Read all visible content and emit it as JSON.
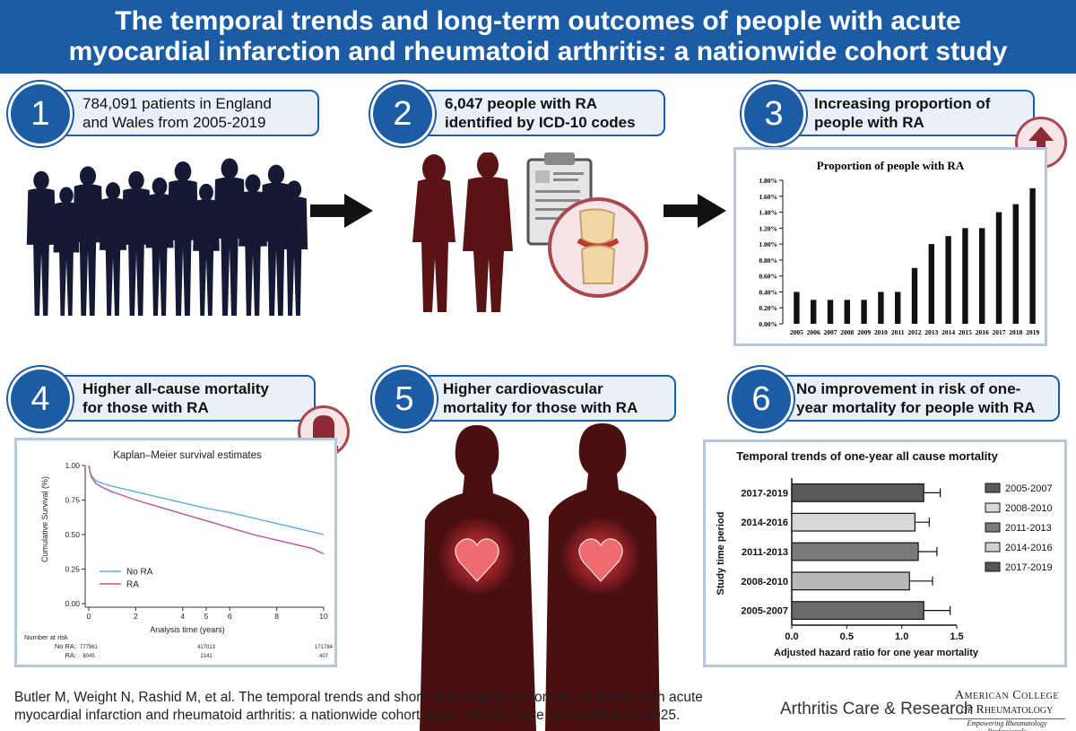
{
  "header": {
    "title_line1": "The temporal trends and long-term outcomes of people with acute",
    "title_line2": "myocardial infarction and rheumatoid arthritis: a nationwide cohort study"
  },
  "steps": [
    {
      "number": "1",
      "line1": "784,091 patients in England",
      "line2": "and Wales from 2005-2019"
    },
    {
      "number": "2",
      "line1": "6,047 people with RA",
      "line2": "identified by ICD-10 codes"
    },
    {
      "number": "3",
      "line1": "Increasing proportion of",
      "line2": "people with RA"
    },
    {
      "number": "4",
      "line1": "Higher all-cause mortality",
      "line2": "for those with RA"
    },
    {
      "number": "5",
      "line1": "Higher cardiovascular",
      "line2": "mortality for those with RA"
    },
    {
      "number": "6",
      "line1": "No improvement in risk of one-",
      "line2": "year mortality for people with RA"
    }
  ],
  "colors": {
    "brand_blue": "#1c5ca5",
    "silhouette_navy": "#141a33",
    "silhouette_maroon": "#5a1415",
    "badge_red": "#a8484f",
    "no_ra_line": "#5aaed6",
    "ra_line": "#c24f8f"
  },
  "icons": [
    "crowd-silhouette",
    "couple-silhouette",
    "clipboard-icon",
    "knee-joint-icon",
    "up-arrow-icon",
    "gravestone-icon",
    "heart-icon"
  ],
  "chart_data": [
    {
      "type": "bar",
      "title": "Proportion of people with RA",
      "categories": [
        "2005",
        "2006",
        "2007",
        "2008",
        "2009",
        "2010",
        "2011",
        "2012",
        "2013",
        "2014",
        "2015",
        "2016",
        "2017",
        "2018",
        "2019"
      ],
      "values": [
        0.4,
        0.3,
        0.3,
        0.3,
        0.3,
        0.4,
        0.4,
        0.7,
        1.0,
        1.1,
        1.2,
        1.2,
        1.4,
        1.5,
        1.7
      ],
      "ylim": [
        0,
        1.8
      ],
      "yticks": [
        "0.00%",
        "0.20%",
        "0.40%",
        "0.60%",
        "0.80%",
        "1.00%",
        "1.20%",
        "1.40%",
        "1.60%",
        "1.80%"
      ],
      "xlabel": "",
      "ylabel": ""
    },
    {
      "type": "line",
      "title": "Kaplan–Meier survival estimates",
      "xlabel": "Analysis time (years)",
      "ylabel": "Cumulative Survival (%)",
      "xlim": [
        0,
        10
      ],
      "ylim": [
        0,
        1
      ],
      "xticks": [
        "0",
        "2",
        "4",
        "5",
        "6",
        "8",
        "10"
      ],
      "yticks": [
        "0.00",
        "0.25",
        "0.50",
        "0.75",
        "1.00"
      ],
      "legend": "bottom-left",
      "series": [
        {
          "name": "No RA",
          "x": [
            0,
            0.1,
            0.3,
            0.6,
            1,
            1.5,
            2,
            3,
            4,
            5,
            6,
            7,
            8,
            9,
            10
          ],
          "y": [
            1.0,
            0.93,
            0.89,
            0.87,
            0.85,
            0.83,
            0.81,
            0.77,
            0.73,
            0.69,
            0.66,
            0.62,
            0.58,
            0.54,
            0.5
          ]
        },
        {
          "name": "RA",
          "x": [
            0,
            0.1,
            0.3,
            0.6,
            1,
            1.5,
            2,
            3,
            4,
            5,
            6,
            7,
            8,
            9,
            9.5,
            10
          ],
          "y": [
            1.0,
            0.92,
            0.87,
            0.84,
            0.81,
            0.78,
            0.75,
            0.7,
            0.65,
            0.6,
            0.55,
            0.5,
            0.46,
            0.42,
            0.4,
            0.36
          ]
        }
      ],
      "risk_table": {
        "heading": "Number at risk",
        "rows": [
          {
            "label": "No RA:",
            "values": [
              "777961",
              "417013",
              "171784"
            ]
          },
          {
            "label": "RA:",
            "values": [
              "6045",
              "2141",
              "407"
            ]
          }
        ]
      }
    },
    {
      "type": "bar",
      "orientation": "horizontal",
      "title": "Temporal trends of one-year all cause mortality",
      "xlabel": "Adjusted hazard ratio for one year mortality",
      "ylabel": "Study time period",
      "xlim": [
        0,
        1.5
      ],
      "xticks": [
        "0.0",
        "0.5",
        "1.0",
        "1.5"
      ],
      "legend": "right",
      "categories": [
        "2017-2019",
        "2014-2016",
        "2011-2013",
        "2008-2010",
        "2005-2007"
      ],
      "values": [
        1.2,
        1.12,
        1.15,
        1.07,
        1.2
      ],
      "ci_upper": [
        1.35,
        1.25,
        1.32,
        1.28,
        1.44
      ],
      "legend_entries": [
        "2005-2007",
        "2008-2010",
        "2011-2013",
        "2014-2016",
        "2017-2019"
      ]
    }
  ],
  "citation": {
    "line1": "Butler M, Weight N, Rashid M, et al. The temporal trends and short- and long-term mortality of people with acute",
    "line2": "myocardial infarction and rheumatoid arthritis: a nationwide cohort study. Arthritis Care Res (Hoboken) 2025."
  },
  "journal_name": "Arthritis Care & Research",
  "acr_logo": {
    "line1": "American College",
    "line2a": "of ",
    "line2b": "Rheumatology",
    "tagline": "Empowering Rheumatology Professionals"
  }
}
